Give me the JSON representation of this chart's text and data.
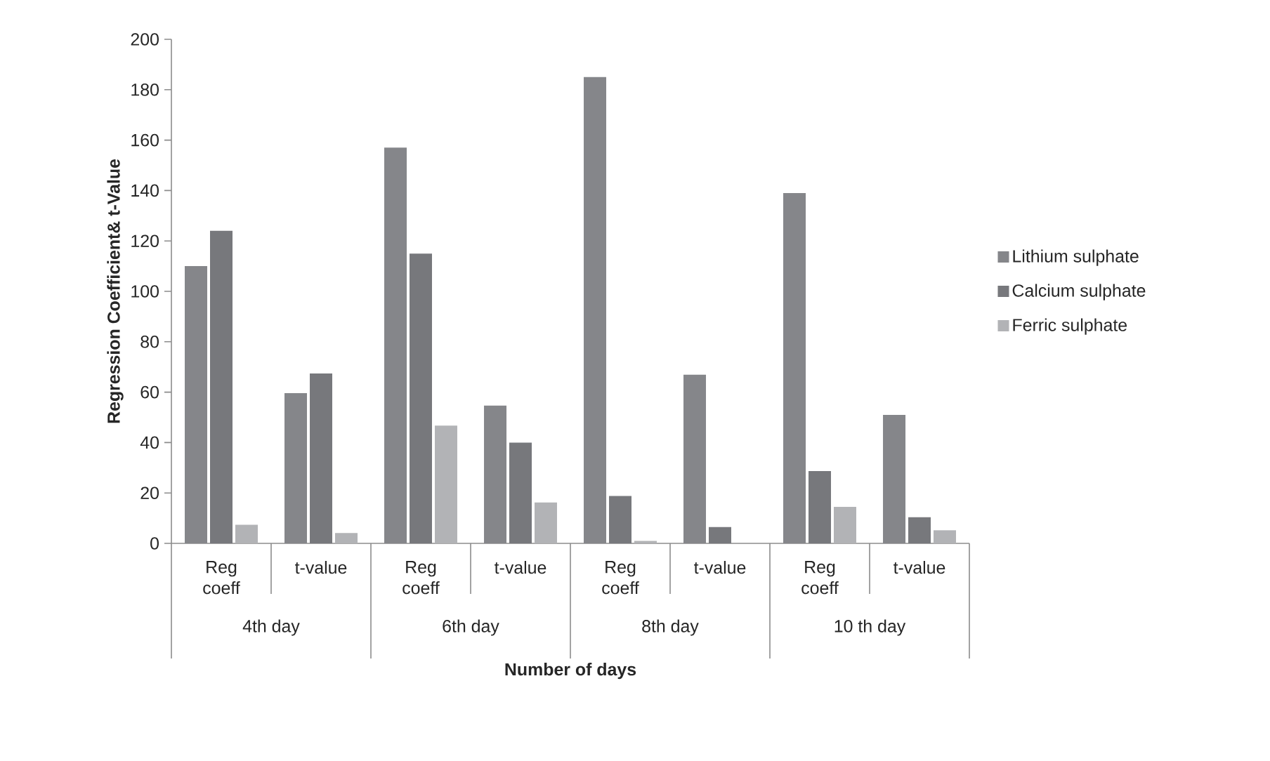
{
  "chart_data": {
    "type": "bar",
    "xlabel": "Number of days",
    "ylabel": "Regression Coefficient& t-Value",
    "categories": [
      "Reg coeff",
      "t-value",
      "Reg coeff",
      "t-value",
      "Reg coeff",
      "t-value",
      "Reg coeff",
      "t-value"
    ],
    "annotations": [
      "4th day",
      "6th day",
      "8th day",
      "10 th day"
    ],
    "series": [
      {
        "name": "Lithium sulphate",
        "color": "#85868a",
        "values": [
          110,
          59.6,
          157,
          54.7,
          185,
          66.9,
          139,
          51
        ]
      },
      {
        "name": "Calcium sulphate",
        "color": "#77787c",
        "values": [
          124,
          67.4,
          115,
          40,
          18.8,
          6.5,
          28.7,
          10.4
        ]
      },
      {
        "name": "Ferric sulphate",
        "color": "#b2b3b6",
        "values": [
          7.4,
          4.1,
          46.7,
          16.2,
          1,
          0,
          14.5,
          5.2
        ]
      }
    ],
    "ylim": [
      0,
      200
    ],
    "yticks": [
      0,
      20,
      40,
      60,
      80,
      100,
      120,
      140,
      160,
      180,
      200
    ],
    "grid": false,
    "legend": "right"
  }
}
